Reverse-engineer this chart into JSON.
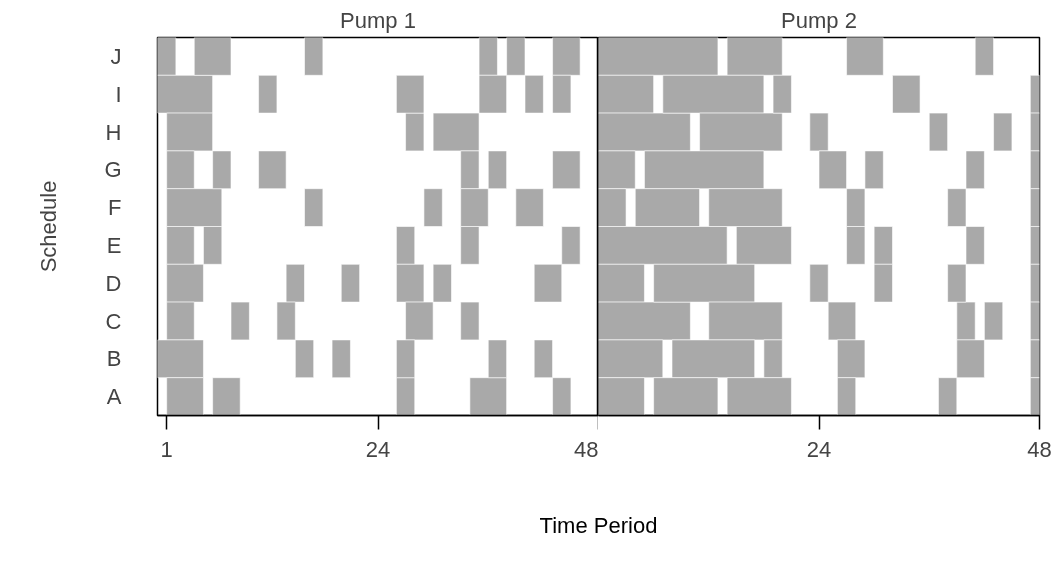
{
  "chart_data": [
    {
      "type": "bar",
      "orientation": "horizontal",
      "title": "Pump 1",
      "ylabel": "Schedule",
      "xlabel": "Time Period",
      "categories": [
        "J",
        "I",
        "H",
        "G",
        "F",
        "E",
        "D",
        "C",
        "B",
        "A"
      ],
      "xlim": [
        0,
        48
      ],
      "xticks": [
        1,
        24,
        48
      ],
      "series": [
        {
          "color": "#a9a9a9",
          "base": [
            0,
            0,
            1,
            1,
            1,
            1,
            1,
            1,
            0,
            1
          ],
          "values": [
            2,
            6,
            5,
            3,
            6,
            3,
            4,
            3,
            5,
            4
          ]
        },
        {
          "color": "#a9a9a9",
          "base": [
            4,
            11,
            27,
            6,
            16,
            5,
            14,
            8,
            15,
            6
          ],
          "values": [
            4,
            2,
            2,
            2,
            2,
            2,
            2,
            2,
            2,
            3
          ]
        },
        {
          "color": "#a9a9a9",
          "base": [
            16,
            26,
            30,
            11,
            29,
            26,
            20,
            13,
            19,
            26
          ],
          "values": [
            2,
            3,
            5,
            3,
            2,
            2,
            2,
            2,
            2,
            2
          ]
        },
        {
          "color": "#a9a9a9",
          "base": [
            35,
            35,
            null,
            33,
            33,
            33,
            26,
            27,
            26,
            34
          ],
          "values": [
            2,
            3,
            null,
            2,
            3,
            2,
            3,
            3,
            2,
            4
          ]
        },
        {
          "color": "#a9a9a9",
          "base": [
            38,
            40,
            null,
            36,
            39,
            44,
            30,
            33,
            36,
            43
          ],
          "values": [
            2,
            2,
            null,
            2,
            3,
            2,
            2,
            2,
            2,
            2
          ]
        },
        {
          "color": "#a9a9a9",
          "base": [
            43,
            43,
            null,
            43,
            null,
            null,
            41,
            null,
            41,
            null
          ],
          "values": [
            3,
            2,
            null,
            3,
            null,
            null,
            3,
            null,
            2,
            null
          ]
        }
      ]
    },
    {
      "type": "bar",
      "orientation": "horizontal",
      "title": "Pump 2",
      "xlim": [
        0,
        48
      ],
      "xticks": [
        24,
        48
      ],
      "tick_labels": "x",
      "series": [
        {
          "color": "#a9a9a9",
          "base": [
            0,
            0,
            0,
            0,
            0,
            0,
            0,
            0,
            0,
            0
          ],
          "values": [
            13,
            6,
            10,
            4,
            3,
            14,
            5,
            10,
            7,
            5
          ]
        },
        {
          "color": "#a9a9a9",
          "base": [
            14,
            7,
            11,
            5,
            4,
            15,
            6,
            12,
            8,
            6
          ],
          "values": [
            6,
            11,
            9,
            13,
            7,
            6,
            11,
            8,
            9,
            7
          ]
        },
        {
          "color": "#a9a9a9",
          "base": [
            27,
            19,
            23,
            24,
            12,
            27,
            23,
            25,
            18,
            14
          ],
          "values": [
            4,
            2,
            2,
            3,
            8,
            2,
            2,
            3,
            2,
            7
          ]
        },
        {
          "color": "#a9a9a9",
          "base": [
            41,
            32,
            36,
            29,
            27,
            30,
            30,
            39,
            26,
            26
          ],
          "values": [
            2,
            3,
            2,
            2,
            2,
            2,
            2,
            2,
            3,
            2
          ]
        },
        {
          "color": "#a9a9a9",
          "base": [
            null,
            47,
            43,
            40,
            38,
            40,
            38,
            42,
            39,
            37
          ],
          "values": [
            null,
            1,
            2,
            2,
            2,
            2,
            2,
            2,
            3,
            2
          ]
        },
        {
          "color": "#a9a9a9",
          "base": [
            null,
            null,
            47,
            47,
            47,
            47,
            47,
            47,
            47,
            47
          ],
          "values": [
            null,
            null,
            1,
            1,
            1,
            1,
            1,
            1,
            1,
            1
          ]
        }
      ]
    }
  ]
}
